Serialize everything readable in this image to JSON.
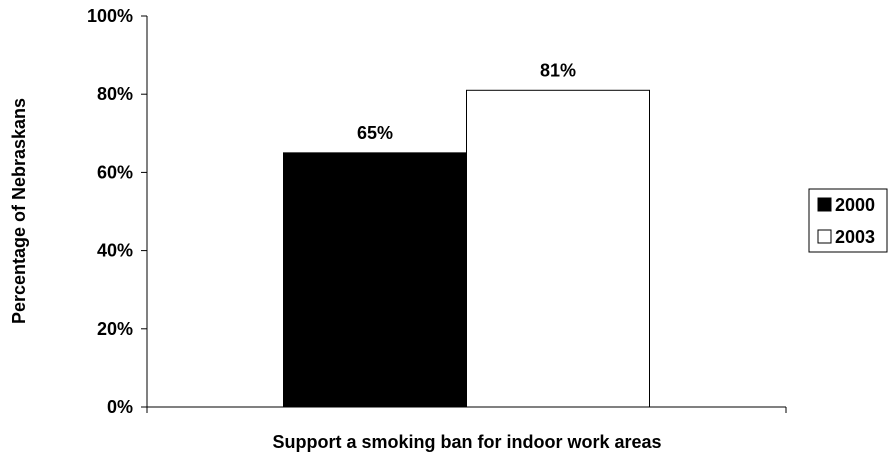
{
  "chart_data": {
    "type": "bar",
    "xlabel": "Support a smoking ban for indoor work areas",
    "ylabel": "Percentage of Nebraskans",
    "ylim": [
      0,
      100
    ],
    "y_ticks": [
      "0%",
      "20%",
      "40%",
      "60%",
      "80%",
      "100%"
    ],
    "y_tick_values": [
      0,
      20,
      40,
      60,
      80,
      100
    ],
    "grid": false,
    "legend_position": "right",
    "series": [
      {
        "name": "2000",
        "values": [
          65
        ],
        "label": "65%",
        "color": "#000000"
      },
      {
        "name": "2003",
        "values": [
          81
        ],
        "label": "81%",
        "color": "#ffffff"
      }
    ]
  }
}
